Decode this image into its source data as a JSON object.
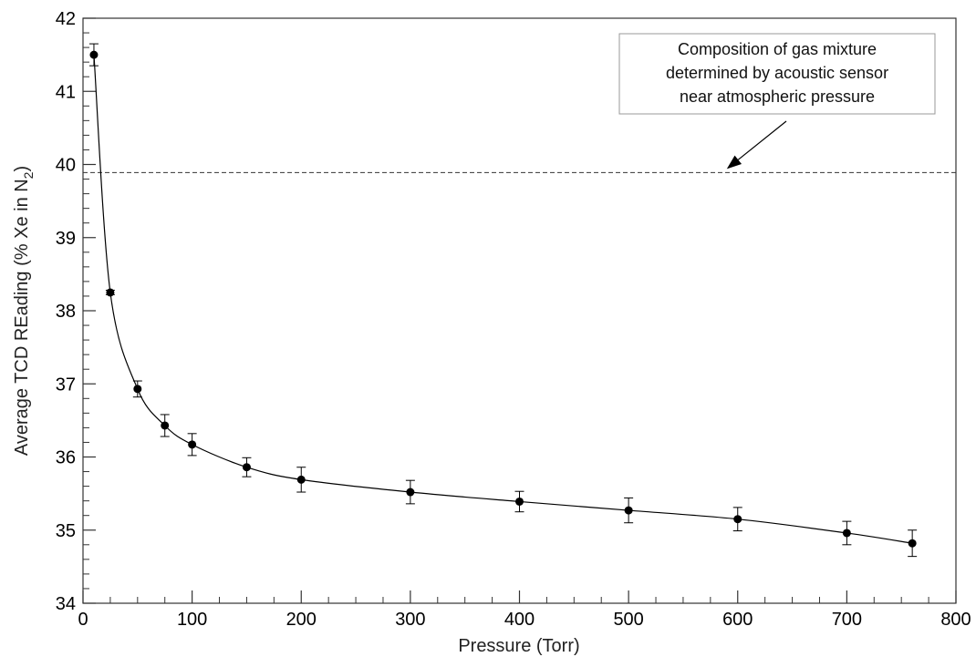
{
  "chart_data": {
    "type": "scatter",
    "xlabel": "Pressure (Torr)",
    "ylabel": "Average TCD REading (% Xe in N",
    "ylabel_sub": "2",
    "ylabel_end": ")",
    "xlim": [
      0,
      800
    ],
    "ylim": [
      34,
      42
    ],
    "x_ticks": [
      0,
      100,
      200,
      300,
      400,
      500,
      600,
      700,
      800
    ],
    "y_ticks": [
      34,
      35,
      36,
      37,
      38,
      39,
      40,
      41,
      42
    ],
    "grid": false,
    "series": [
      {
        "points": [
          {
            "x": 10,
            "y": 41.5,
            "err": 0.15
          },
          {
            "x": 25,
            "y": 38.25,
            "err": 0.03
          },
          {
            "x": 50,
            "y": 36.93,
            "err": 0.11
          },
          {
            "x": 75,
            "y": 36.43,
            "err": 0.15
          },
          {
            "x": 100,
            "y": 36.17,
            "err": 0.15
          },
          {
            "x": 150,
            "y": 35.86,
            "err": 0.13
          },
          {
            "x": 200,
            "y": 35.69,
            "err": 0.17
          },
          {
            "x": 300,
            "y": 35.52,
            "err": 0.16
          },
          {
            "x": 400,
            "y": 35.39,
            "err": 0.14
          },
          {
            "x": 500,
            "y": 35.27,
            "err": 0.17
          },
          {
            "x": 600,
            "y": 35.15,
            "err": 0.16
          },
          {
            "x": 700,
            "y": 34.96,
            "err": 0.16
          },
          {
            "x": 760,
            "y": 34.82,
            "err": 0.18
          }
        ]
      }
    ],
    "reference_line": {
      "y": 39.89,
      "style": "dashed"
    },
    "annotation": {
      "lines": [
        "Composition of gas mixture",
        "determined by acoustic sensor",
        "near atmospheric pressure"
      ],
      "arrow_target": {
        "x": 590,
        "y": 39.89
      }
    }
  }
}
